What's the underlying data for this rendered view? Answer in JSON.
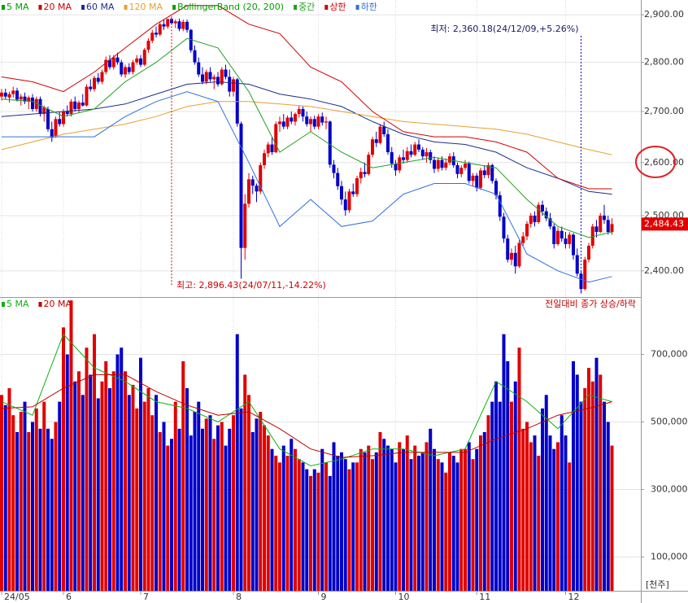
{
  "chart_data": {
    "type": "candlestick",
    "log_scale": true,
    "grid": true,
    "up_color": "#e00000",
    "down_color": "#0000c8",
    "ylim": [
      2354,
      2932
    ],
    "yticks": [
      {
        "value": 2400,
        "label": "2,400.00"
      },
      {
        "value": 2500,
        "label": "2,500.00"
      },
      {
        "value": 2600,
        "label": "2,600.00"
      },
      {
        "value": 2700,
        "label": "2,700.00"
      },
      {
        "value": 2800,
        "label": "2,800.00"
      },
      {
        "value": 2900,
        "label": "2,900.00"
      }
    ],
    "xticks": [
      {
        "value": 0,
        "label": "24/05"
      },
      {
        "value": 16,
        "label": "6"
      },
      {
        "value": 36,
        "label": "7"
      },
      {
        "value": 60,
        "label": "8"
      },
      {
        "value": 82,
        "label": "9"
      },
      {
        "value": 102,
        "label": "10"
      },
      {
        "value": 123,
        "label": "11"
      },
      {
        "value": 146,
        "label": "12"
      }
    ],
    "ohlc": [
      [
        2730,
        2745,
        2722,
        2738
      ],
      [
        2738,
        2746,
        2725,
        2730
      ],
      [
        2728,
        2740,
        2718,
        2735
      ],
      [
        2735,
        2750,
        2728,
        2742
      ],
      [
        2742,
        2748,
        2720,
        2724
      ],
      [
        2724,
        2735,
        2712,
        2730
      ],
      [
        2730,
        2738,
        2715,
        2720
      ],
      [
        2720,
        2732,
        2705,
        2728
      ],
      [
        2728,
        2735,
        2700,
        2705
      ],
      [
        2705,
        2730,
        2700,
        2725
      ],
      [
        2725,
        2730,
        2690,
        2695
      ],
      [
        2695,
        2712,
        2680,
        2708
      ],
      [
        2705,
        2710,
        2660,
        2665
      ],
      [
        2665,
        2680,
        2640,
        2648
      ],
      [
        2650,
        2690,
        2648,
        2685
      ],
      [
        2685,
        2700,
        2670,
        2675
      ],
      [
        2675,
        2705,
        2670,
        2700
      ],
      [
        2700,
        2712,
        2690,
        2695
      ],
      [
        2695,
        2725,
        2690,
        2720
      ],
      [
        2720,
        2730,
        2700,
        2705
      ],
      [
        2705,
        2722,
        2698,
        2718
      ],
      [
        2718,
        2735,
        2710,
        2712
      ],
      [
        2712,
        2755,
        2710,
        2750
      ],
      [
        2750,
        2765,
        2740,
        2745
      ],
      [
        2745,
        2772,
        2740,
        2768
      ],
      [
        2768,
        2778,
        2755,
        2760
      ],
      [
        2760,
        2785,
        2755,
        2780
      ],
      [
        2780,
        2812,
        2775,
        2805
      ],
      [
        2805,
        2815,
        2785,
        2790
      ],
      [
        2790,
        2815,
        2785,
        2810
      ],
      [
        2810,
        2820,
        2795,
        2800
      ],
      [
        2800,
        2805,
        2770,
        2775
      ],
      [
        2775,
        2795,
        2768,
        2790
      ],
      [
        2790,
        2798,
        2775,
        2780
      ],
      [
        2780,
        2805,
        2775,
        2800
      ],
      [
        2800,
        2815,
        2795,
        2808
      ],
      [
        2808,
        2815,
        2790,
        2795
      ],
      [
        2795,
        2830,
        2792,
        2826
      ],
      [
        2826,
        2850,
        2820,
        2845
      ],
      [
        2845,
        2868,
        2840,
        2862
      ],
      [
        2862,
        2875,
        2852,
        2858
      ],
      [
        2858,
        2885,
        2855,
        2880
      ],
      [
        2880,
        2890,
        2868,
        2875
      ],
      [
        2875,
        2892,
        2870,
        2891
      ],
      [
        2891,
        2896.43,
        2878,
        2882
      ],
      [
        2882,
        2890,
        2872,
        2886
      ],
      [
        2886,
        2892,
        2865,
        2870
      ],
      [
        2870,
        2890,
        2865,
        2885
      ],
      [
        2885,
        2890,
        2862,
        2868
      ],
      [
        2868,
        2870,
        2820,
        2825
      ],
      [
        2825,
        2835,
        2795,
        2800
      ],
      [
        2800,
        2810,
        2770,
        2775
      ],
      [
        2775,
        2790,
        2755,
        2760
      ],
      [
        2760,
        2785,
        2755,
        2780
      ],
      [
        2780,
        2790,
        2760,
        2765
      ],
      [
        2765,
        2775,
        2745,
        2770
      ],
      [
        2770,
        2780,
        2750,
        2755
      ],
      [
        2755,
        2790,
        2752,
        2785
      ],
      [
        2785,
        2795,
        2765,
        2770
      ],
      [
        2770,
        2785,
        2730,
        2740
      ],
      [
        2740,
        2770,
        2730,
        2765
      ],
      [
        2765,
        2768,
        2670,
        2676
      ],
      [
        2676,
        2680,
        2386,
        2441
      ],
      [
        2441,
        2540,
        2420,
        2522
      ],
      [
        2522,
        2580,
        2515,
        2568
      ],
      [
        2568,
        2575,
        2540,
        2556
      ],
      [
        2556,
        2560,
        2525,
        2545
      ],
      [
        2545,
        2600,
        2540,
        2595
      ],
      [
        2595,
        2625,
        2588,
        2618
      ],
      [
        2618,
        2640,
        2610,
        2635
      ],
      [
        2635,
        2650,
        2615,
        2620
      ],
      [
        2620,
        2680,
        2618,
        2675
      ],
      [
        2675,
        2690,
        2660,
        2680
      ],
      [
        2680,
        2695,
        2665,
        2670
      ],
      [
        2670,
        2692,
        2665,
        2688
      ],
      [
        2688,
        2700,
        2675,
        2680
      ],
      [
        2680,
        2698,
        2672,
        2695
      ],
      [
        2695,
        2712,
        2688,
        2705
      ],
      [
        2705,
        2710,
        2680,
        2690
      ],
      [
        2690,
        2700,
        2670,
        2675
      ],
      [
        2675,
        2690,
        2660,
        2685
      ],
      [
        2685,
        2692,
        2665,
        2670
      ],
      [
        2670,
        2695,
        2665,
        2690
      ],
      [
        2690,
        2698,
        2672,
        2678
      ],
      [
        2678,
        2690,
        2665,
        2680
      ],
      [
        2680,
        2682,
        2590,
        2596
      ],
      [
        2596,
        2605,
        2570,
        2580
      ],
      [
        2580,
        2590,
        2548,
        2555
      ],
      [
        2555,
        2565,
        2520,
        2530
      ],
      [
        2530,
        2545,
        2500,
        2510
      ],
      [
        2510,
        2550,
        2505,
        2545
      ],
      [
        2545,
        2560,
        2535,
        2540
      ],
      [
        2540,
        2575,
        2535,
        2570
      ],
      [
        2570,
        2590,
        2560,
        2582
      ],
      [
        2582,
        2600,
        2572,
        2578
      ],
      [
        2578,
        2620,
        2575,
        2615
      ],
      [
        2615,
        2650,
        2610,
        2645
      ],
      [
        2645,
        2660,
        2630,
        2638
      ],
      [
        2638,
        2675,
        2635,
        2670
      ],
      [
        2670,
        2680,
        2650,
        2655
      ],
      [
        2655,
        2665,
        2615,
        2620
      ],
      [
        2620,
        2630,
        2590,
        2598
      ],
      [
        2598,
        2605,
        2575,
        2585
      ],
      [
        2585,
        2615,
        2580,
        2610
      ],
      [
        2610,
        2625,
        2598,
        2605
      ],
      [
        2605,
        2630,
        2600,
        2622
      ],
      [
        2622,
        2635,
        2610,
        2615
      ],
      [
        2615,
        2640,
        2612,
        2635
      ],
      [
        2635,
        2645,
        2620,
        2625
      ],
      [
        2625,
        2630,
        2605,
        2612
      ],
      [
        2612,
        2628,
        2600,
        2620
      ],
      [
        2620,
        2625,
        2598,
        2605
      ],
      [
        2605,
        2612,
        2580,
        2588
      ],
      [
        2588,
        2610,
        2582,
        2605
      ],
      [
        2605,
        2612,
        2585,
        2590
      ],
      [
        2590,
        2608,
        2585,
        2600
      ],
      [
        2600,
        2618,
        2595,
        2612
      ],
      [
        2612,
        2620,
        2590,
        2595
      ],
      [
        2595,
        2600,
        2570,
        2578
      ],
      [
        2578,
        2595,
        2572,
        2590
      ],
      [
        2590,
        2605,
        2585,
        2598
      ],
      [
        2598,
        2602,
        2560,
        2565
      ],
      [
        2565,
        2580,
        2555,
        2575
      ],
      [
        2575,
        2580,
        2545,
        2552
      ],
      [
        2552,
        2590,
        2548,
        2585
      ],
      [
        2585,
        2595,
        2570,
        2576
      ],
      [
        2576,
        2600,
        2570,
        2595
      ],
      [
        2595,
        2598,
        2560,
        2565
      ],
      [
        2565,
        2570,
        2530,
        2538
      ],
      [
        2538,
        2545,
        2490,
        2498
      ],
      [
        2498,
        2505,
        2450,
        2458
      ],
      [
        2458,
        2465,
        2415,
        2420
      ],
      [
        2420,
        2440,
        2410,
        2432
      ],
      [
        2432,
        2445,
        2395,
        2408
      ],
      [
        2408,
        2455,
        2405,
        2450
      ],
      [
        2450,
        2470,
        2445,
        2462
      ],
      [
        2462,
        2490,
        2455,
        2485
      ],
      [
        2485,
        2505,
        2478,
        2500
      ],
      [
        2500,
        2508,
        2480,
        2488
      ],
      [
        2488,
        2525,
        2485,
        2520
      ],
      [
        2520,
        2528,
        2500,
        2508
      ],
      [
        2508,
        2515,
        2490,
        2495
      ],
      [
        2495,
        2505,
        2475,
        2480
      ],
      [
        2480,
        2485,
        2440,
        2448
      ],
      [
        2448,
        2478,
        2445,
        2472
      ],
      [
        2472,
        2480,
        2452,
        2458
      ],
      [
        2458,
        2470,
        2440,
        2448
      ],
      [
        2448,
        2470,
        2440,
        2465
      ],
      [
        2465,
        2468,
        2420,
        2428
      ],
      [
        2428,
        2440,
        2390,
        2395
      ],
      [
        2395,
        2400,
        2360.18,
        2368
      ],
      [
        2368,
        2425,
        2365,
        2420
      ],
      [
        2420,
        2450,
        2415,
        2445
      ],
      [
        2445,
        2485,
        2440,
        2480
      ],
      [
        2480,
        2492,
        2460,
        2470
      ],
      [
        2470,
        2505,
        2468,
        2500
      ],
      [
        2500,
        2520,
        2485,
        2492
      ],
      [
        2492,
        2500,
        2465,
        2470
      ],
      [
        2470,
        2495,
        2465,
        2484.43
      ]
    ],
    "line_x": [
      0,
      8,
      16,
      24,
      32,
      40,
      48,
      56,
      64,
      72,
      80,
      88,
      96,
      104,
      112,
      120,
      128,
      136,
      144,
      152,
      158
    ],
    "series": [
      {
        "name": "5 MA",
        "color": "#00a000"
      },
      {
        "name": "20 MA",
        "color": "#d00000"
      },
      {
        "name": "60 MA",
        "color": "#1a2f8a",
        "values": [
          2690,
          2695,
          2700,
          2705,
          2715,
          2735,
          2755,
          2760,
          2755,
          2735,
          2725,
          2710,
          2680,
          2655,
          2640,
          2635,
          2620,
          2590,
          2570,
          2545,
          2540
        ]
      },
      {
        "name": "120 MA",
        "color": "#e8a030",
        "values": [
          2625,
          2640,
          2655,
          2665,
          2675,
          2690,
          2710,
          2720,
          2720,
          2715,
          2710,
          2700,
          2690,
          2680,
          2675,
          2670,
          2665,
          2655,
          2640,
          2625,
          2615
        ]
      },
      {
        "name": "BollingerBand (20, 200)",
        "color": "#00a000"
      },
      {
        "name": "중간",
        "color": "#20a020",
        "values": [
          2725,
          2720,
          2690,
          2705,
          2760,
          2800,
          2850,
          2830,
          2740,
          2620,
          2660,
          2620,
          2590,
          2600,
          2610,
          2600,
          2590,
          2530,
          2480,
          2460,
          2470
        ]
      },
      {
        "name": "상한",
        "color": "#d00000",
        "values": [
          2770,
          2760,
          2740,
          2780,
          2830,
          2880,
          2920,
          2920,
          2880,
          2860,
          2790,
          2760,
          2700,
          2660,
          2650,
          2650,
          2640,
          2620,
          2570,
          2550,
          2550
        ]
      },
      {
        "name": "하한",
        "color": "#3070e0",
        "values": [
          2650,
          2650,
          2650,
          2650,
          2690,
          2720,
          2740,
          2720,
          2600,
          2480,
          2530,
          2480,
          2490,
          2540,
          2560,
          2560,
          2540,
          2430,
          2400,
          2380,
          2390
        ]
      }
    ],
    "annotations": {
      "high": "최고: 2,896.43(24/07/11,-14.22%)",
      "low": "최저: 2,360.18(24/12/09,+5.26%)",
      "note": "전일대비 종가 상승/하락"
    },
    "last_price": {
      "value": 2484.43,
      "label": "2,484.43"
    },
    "volume": {
      "type": "bar",
      "unit": "[천주]",
      "ylim": [
        0,
        870000
      ],
      "yticks": [
        {
          "value": 100000,
          "label": "100,000"
        },
        {
          "value": 300000,
          "label": "300,000"
        },
        {
          "value": 500000,
          "label": "500,000"
        },
        {
          "value": 700000,
          "label": "700,000"
        }
      ],
      "values": [
        580000,
        550000,
        600000,
        520000,
        470000,
        530000,
        560000,
        470000,
        500000,
        540000,
        480000,
        560000,
        480000,
        450000,
        500000,
        560000,
        780000,
        700000,
        860000,
        620000,
        650000,
        580000,
        720000,
        640000,
        760000,
        570000,
        620000,
        680000,
        600000,
        650000,
        700000,
        720000,
        650000,
        580000,
        610000,
        540000,
        690000,
        560000,
        600000,
        520000,
        580000,
        470000,
        500000,
        430000,
        450000,
        560000,
        480000,
        680000,
        600000,
        460000,
        530000,
        560000,
        480000,
        510000,
        520000,
        450000,
        490000,
        500000,
        430000,
        480000,
        520000,
        760000,
        540000,
        640000,
        580000,
        470000,
        510000,
        530000,
        490000,
        460000,
        420000,
        400000,
        380000,
        430000,
        400000,
        450000,
        420000,
        390000,
        380000,
        360000,
        340000,
        360000,
        350000,
        420000,
        380000,
        340000,
        440000,
        400000,
        410000,
        390000,
        360000,
        380000,
        380000,
        420000,
        410000,
        430000,
        390000,
        410000,
        470000,
        450000,
        430000,
        420000,
        380000,
        440000,
        420000,
        460000,
        390000,
        430000,
        400000,
        410000,
        440000,
        480000,
        420000,
        390000,
        380000,
        350000,
        410000,
        400000,
        380000,
        420000,
        420000,
        440000,
        390000,
        420000,
        460000,
        470000,
        520000,
        560000,
        620000,
        560000,
        760000,
        680000,
        560000,
        620000,
        720000,
        480000,
        500000,
        440000,
        460000,
        400000,
        540000,
        580000,
        460000,
        420000,
        440000,
        520000,
        460000,
        380000,
        680000,
        640000,
        560000,
        600000,
        660000,
        620000,
        690000,
        640000,
        560000,
        500000,
        430000
      ],
      "series": [
        {
          "name": "5 MA",
          "color": "#10b010",
          "values": [
            560000,
            520000,
            760000,
            660000,
            620000,
            560000,
            540000,
            500000,
            560000,
            420000,
            370000,
            390000,
            420000,
            420000,
            400000,
            420000,
            620000,
            560000,
            480000,
            580000,
            560000
          ]
        },
        {
          "name": "20 MA",
          "color": "#c00000",
          "values": [
            540000,
            545000,
            600000,
            640000,
            640000,
            590000,
            550000,
            520000,
            530000,
            480000,
            420000,
            395000,
            400000,
            410000,
            410000,
            410000,
            450000,
            480000,
            520000,
            540000,
            560000
          ]
        }
      ]
    }
  }
}
